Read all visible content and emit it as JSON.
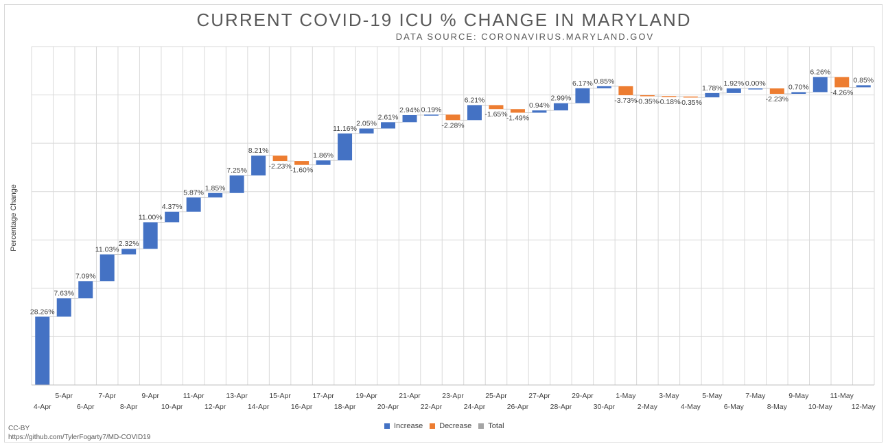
{
  "chart_data": {
    "type": "waterfall",
    "title": "CURRENT COVID-19 ICU % CHANGE IN MARYLAND",
    "subtitle": "DATA SOURCE: CORONAVIRUS.MARYLAND.GOV",
    "xlabel": "",
    "ylabel": "Percentage Change",
    "categories": [
      "4-Apr",
      "5-Apr",
      "6-Apr",
      "7-Apr",
      "8-Apr",
      "9-Apr",
      "10-Apr",
      "11-Apr",
      "12-Apr",
      "13-Apr",
      "14-Apr",
      "15-Apr",
      "16-Apr",
      "17-Apr",
      "18-Apr",
      "19-Apr",
      "20-Apr",
      "21-Apr",
      "22-Apr",
      "23-Apr",
      "24-Apr",
      "25-Apr",
      "26-Apr",
      "27-Apr",
      "28-Apr",
      "29-Apr",
      "30-Apr",
      "1-May",
      "2-May",
      "3-May",
      "4-May",
      "5-May",
      "6-May",
      "7-May",
      "8-May",
      "9-May",
      "10-May",
      "11-May",
      "12-May"
    ],
    "values": [
      28.26,
      7.63,
      7.09,
      11.03,
      2.32,
      11.0,
      4.37,
      5.87,
      1.85,
      7.25,
      8.21,
      -2.23,
      -1.6,
      1.86,
      11.16,
      2.05,
      2.61,
      2.94,
      0.19,
      -2.28,
      6.21,
      -1.65,
      -1.49,
      0.94,
      2.99,
      6.17,
      0.85,
      -3.73,
      -0.35,
      -0.18,
      -0.35,
      1.78,
      1.92,
      0.0,
      -2.23,
      0.7,
      6.26,
      -4.26,
      0.85
    ],
    "labels": [
      "28.26%",
      "7.63%",
      "7.09%",
      "11.03%",
      "2.32%",
      "11.00%",
      "4.37%",
      "5.87%",
      "1.85%",
      "7.25%",
      "8.21%",
      "-2.23%",
      "-1.60%",
      "1.86%",
      "11.16%",
      "2.05%",
      "2.61%",
      "2.94%",
      "0.19%",
      "-2.28%",
      "6.21%",
      "-1.65%",
      "-1.49%",
      "0.94%",
      "2.99%",
      "6.17%",
      "0.85%",
      "-3.73%",
      "-0.35%",
      "-0.18%",
      "-0.35%",
      "1.78%",
      "1.92%",
      "0.00%",
      "-2.23%",
      "0.70%",
      "6.26%",
      "-4.26%",
      "0.85%"
    ],
    "ylim": [
      0,
      140
    ],
    "grid": true,
    "legend": {
      "position": "bottom",
      "entries": [
        "Increase",
        "Decrease",
        "Total"
      ]
    },
    "colors": {
      "increase": "#4472c4",
      "decrease": "#ed7d31",
      "total": "#a5a5a5"
    }
  },
  "footer": {
    "license": "CC-BY",
    "source_url": "https://github.com/TylerFogarty7/MD-COVID19"
  }
}
